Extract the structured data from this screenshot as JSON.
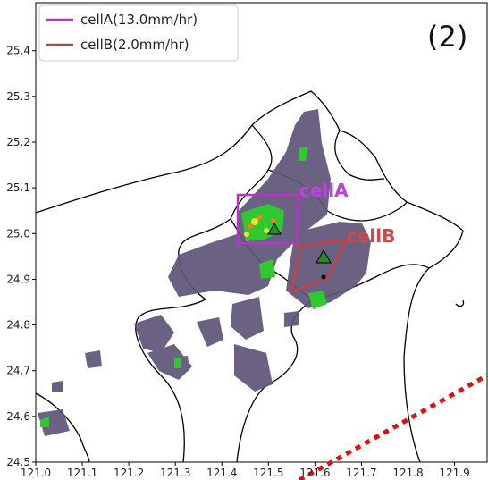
{
  "map": {
    "panel_label": "(2)",
    "legend": [
      {
        "name": "cellA(13.0mm/hr)",
        "color": "#c030d0"
      },
      {
        "name": "cellB(2.0mm/hr)",
        "color": "#c84040"
      }
    ],
    "annotations": [
      {
        "text": "cellA",
        "color": "#c040e0"
      },
      {
        "text": "cellB",
        "color": "#d04848"
      }
    ],
    "xlim": [
      121.0,
      121.97
    ],
    "ylim": [
      24.5,
      25.505
    ],
    "xticks": [
      {
        "value": 121.0,
        "label": "121.0"
      },
      121.1,
      121.2,
      121.3,
      121.4,
      121.5,
      121.6,
      121.7,
      121.8,
      121.9
    ],
    "yticks": [
      24.5,
      24.6,
      24.7,
      24.8,
      24.9,
      {
        "value": 25.0,
        "label": "25.0"
      },
      25.1,
      25.2,
      25.3,
      25.4
    ]
  }
}
